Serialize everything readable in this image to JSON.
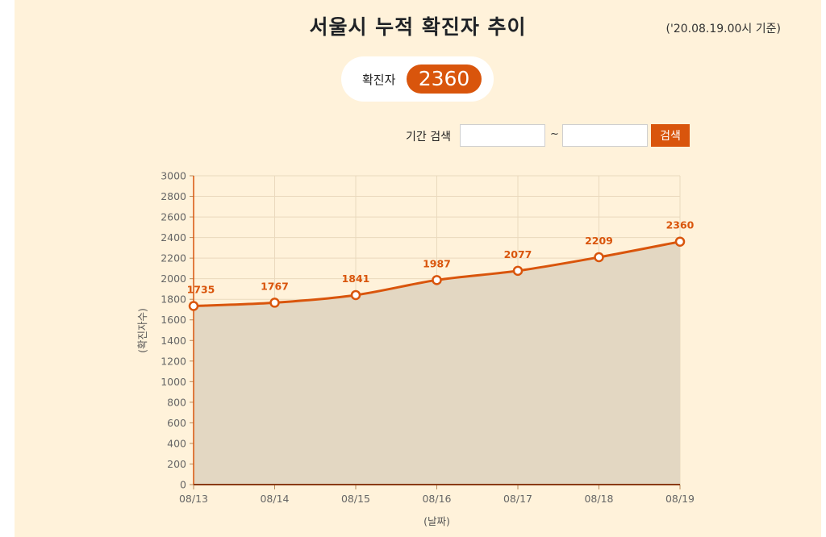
{
  "header": {
    "title": "서울시 누적 확진자 추이",
    "basis": "('20.08.19.00시 기준)"
  },
  "summary": {
    "label": "확진자",
    "value": "2360"
  },
  "search": {
    "label": "기간 검색",
    "separator": "~",
    "start_value": "",
    "end_value": "",
    "button_label": "검색"
  },
  "colors": {
    "accent": "#d9550c",
    "background": "#fff2da",
    "area_fill": "#e3d7c2",
    "grid": "#ead9bd"
  },
  "chart_data": {
    "type": "area",
    "xlabel": "(날짜)",
    "ylabel": "(확진자수)",
    "categories": [
      "08/13",
      "08/14",
      "08/15",
      "08/16",
      "08/17",
      "08/18",
      "08/19"
    ],
    "series": [
      {
        "values": [
          1735,
          1767,
          1841,
          1987,
          2077,
          2209,
          2360
        ]
      }
    ],
    "ylim": [
      0,
      3000
    ],
    "yticks": [
      0,
      200,
      400,
      600,
      800,
      1000,
      1200,
      1400,
      1600,
      1800,
      2000,
      2200,
      2400,
      2600,
      2800,
      3000
    ],
    "grid": true,
    "data_labels": true
  }
}
